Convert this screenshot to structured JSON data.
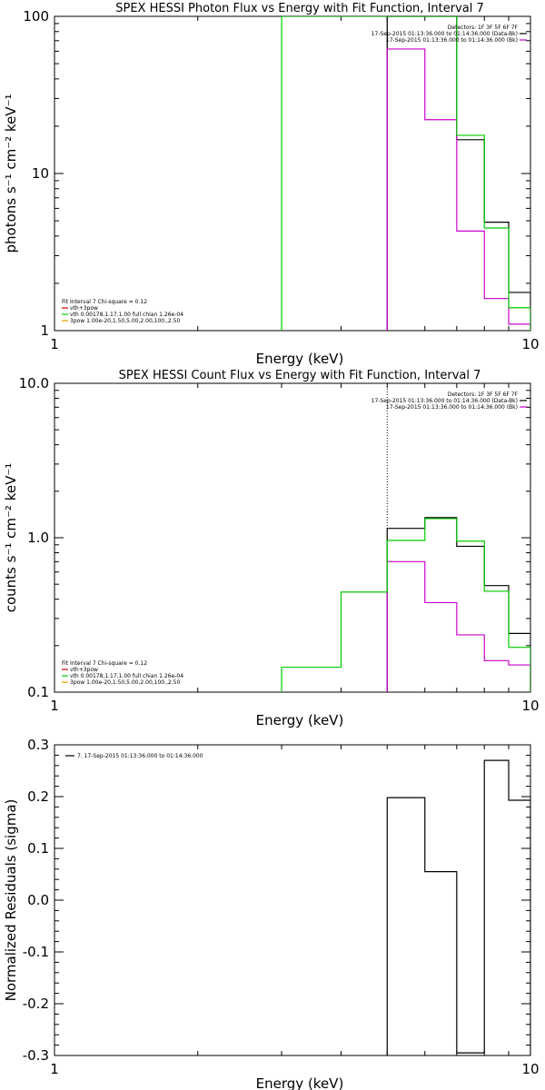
{
  "chart_data": [
    {
      "type": "line",
      "title": "SPEX HESSI Photon Flux vs Energy with Fit Function, Interval 7",
      "xlabel": "Energy (keV)",
      "ylabel": "photons s⁻¹ cm⁻² keV⁻¹",
      "xscale": "log",
      "yscale": "log",
      "xlim": [
        1,
        10
      ],
      "ylim": [
        1,
        100
      ],
      "x_ticks": [
        {
          "v": 1,
          "label": "1"
        },
        {
          "v": 10,
          "label": "10"
        }
      ],
      "y_ticks": [
        {
          "v": 1,
          "label": "1"
        },
        {
          "v": 10,
          "label": "10"
        },
        {
          "v": 100,
          "label": "100"
        }
      ],
      "vline": {
        "x": 5.0,
        "style": "dotted"
      },
      "fit_legend": [
        "Fit Interval  7   Chi-square = 0.12",
        "vth+3pow",
        "vth 0.00178,1.17,1.00  full chian 1.26e-04",
        "3pow 1.00e-20,1.50,5.00,2.00,100.,2.50"
      ],
      "fit_legend_colors": [
        "#000000",
        "#cc0000",
        "#00cc00",
        "#e8a000"
      ],
      "data_legend": [
        "Detectors: 1F 3F 5F 6F 7F",
        "17-Sep-2015 01:13:36.000 to 01:14:36.000 (Data-Bk)",
        "17-Sep-2015 01:13:36.000 to 01:14:36.000 (Bk)"
      ],
      "data_legend_colors": [
        "",
        "#000000",
        "#cc00cc"
      ],
      "series": [
        {
          "color": "#000000",
          "edges": [
            5.0,
            6.0,
            7.0,
            8.0,
            9.0,
            10.0
          ],
          "values": [
            100,
            100,
            16.4,
            4.9,
            1.75
          ]
        },
        {
          "color": "#cc00cc",
          "edges": [
            5.0,
            6.0,
            7.0,
            8.0,
            9.0,
            10.0
          ],
          "values": [
            62,
            22,
            4.3,
            1.6,
            1.1
          ]
        },
        {
          "color": "#00cc00",
          "edges": [
            3.0,
            5.0,
            6.0,
            7.0,
            8.0,
            9.0,
            10.0
          ],
          "values": [
            100,
            100,
            100,
            17.5,
            4.5,
            1.4
          ]
        }
      ]
    },
    {
      "type": "line",
      "title": "SPEX HESSI Count Flux vs Energy with Fit Function, Interval 7",
      "xlabel": "Energy (keV)",
      "ylabel": "counts s⁻¹ cm⁻² keV⁻¹",
      "xscale": "log",
      "yscale": "log",
      "xlim": [
        1,
        10
      ],
      "ylim": [
        0.1,
        10
      ],
      "x_ticks": [
        {
          "v": 1,
          "label": "1"
        },
        {
          "v": 10,
          "label": "10"
        }
      ],
      "y_ticks": [
        {
          "v": 0.1,
          "label": "0.1"
        },
        {
          "v": 1,
          "label": "1.0"
        },
        {
          "v": 10,
          "label": "10.0"
        }
      ],
      "vline": {
        "x": 5.0,
        "style": "dotted"
      },
      "fit_legend": [
        "Fit Interval  7   Chi-square = 0.12",
        "vth+3pow",
        "vth 0.00178,1.17,1.00  full chian 1.26e-04",
        "3pow 1.00e-20,1.50,5.00,2.00,100.,2.50"
      ],
      "fit_legend_colors": [
        "#000000",
        "#cc0000",
        "#00cc00",
        "#e8a000"
      ],
      "data_legend": [
        "Detectors: 1F 3F 5F 6F 7F",
        "17-Sep-2015 01:13:36.000 to 01:14:36.000 (Data-Bk)",
        "17-Sep-2015 01:13:36.000 to 01:14:36.000 (Bk)"
      ],
      "data_legend_colors": [
        "",
        "#000000",
        "#cc00cc"
      ],
      "series": [
        {
          "color": "#000000",
          "edges": [
            5.0,
            6.0,
            7.0,
            8.0,
            9.0,
            10.0
          ],
          "values": [
            1.15,
            1.35,
            0.88,
            0.49,
            0.24
          ]
        },
        {
          "color": "#cc00cc",
          "edges": [
            5.0,
            6.0,
            7.0,
            8.0,
            9.0,
            10.0
          ],
          "values": [
            0.7,
            0.38,
            0.235,
            0.16,
            0.15
          ]
        },
        {
          "color": "#00cc00",
          "edges": [
            3.0,
            4.0,
            5.0,
            6.0,
            7.0,
            8.0,
            9.0,
            10.0
          ],
          "values": [
            0.145,
            0.445,
            0.96,
            1.33,
            0.95,
            0.45,
            0.195
          ]
        }
      ]
    },
    {
      "type": "line",
      "title": "",
      "xlabel": "Energy (keV)",
      "ylabel": "Normalized Residuals (sigma)",
      "xscale": "log",
      "yscale": "linear",
      "xlim": [
        1,
        10
      ],
      "ylim": [
        -0.3,
        0.3
      ],
      "x_ticks": [
        {
          "v": 1,
          "label": "1"
        },
        {
          "v": 10,
          "label": "10"
        }
      ],
      "y_ticks": [
        {
          "v": -0.3,
          "label": "-0.3"
        },
        {
          "v": -0.2,
          "label": "-0.2"
        },
        {
          "v": -0.1,
          "label": "-0.1"
        },
        {
          "v": 0.0,
          "label": "0.0"
        },
        {
          "v": 0.1,
          "label": "0.1"
        },
        {
          "v": 0.2,
          "label": "0.2"
        },
        {
          "v": 0.3,
          "label": "0.3"
        }
      ],
      "data_legend": [
        "7. 17-Sep-2015 01:13:36.000 to 01:14:36.000"
      ],
      "data_legend_colors": [
        "#000000"
      ],
      "legend_position": "top-left",
      "series": [
        {
          "color": "#000000",
          "edges": [
            5.0,
            6.0,
            7.0,
            8.0,
            9.0,
            10.0
          ],
          "values": [
            0.198,
            0.055,
            -0.295,
            0.27,
            0.193
          ]
        }
      ]
    }
  ]
}
